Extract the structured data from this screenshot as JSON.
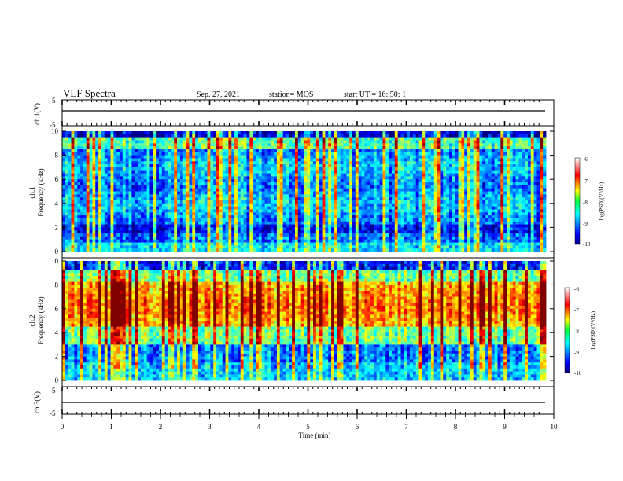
{
  "header": {
    "title": "VLF Spectra",
    "date": "Sep. 27, 2021",
    "station": "station= MOS",
    "start": "start  UT =   16: 50: 1"
  },
  "chart_data": [
    {
      "type": "line",
      "panel": "ch1-waveform",
      "ylabel": "ch.1(V)",
      "ylim": [
        -5,
        5
      ],
      "yticks": [
        "5",
        "-5"
      ],
      "xlim": [
        0,
        10
      ],
      "series": [
        {
          "values": [
            -1.3,
            -1.3
          ]
        }
      ]
    },
    {
      "type": "heatmap",
      "panel": "ch1-spectrogram",
      "ylabel": "ch.1\nFrequency (kHz)",
      "ylim": [
        0,
        10
      ],
      "yticks": [
        "0",
        "2",
        "4",
        "6",
        "8",
        "10"
      ],
      "xlim": [
        0,
        9.85
      ],
      "colorbar": {
        "label": "log(PSD)(V²/Hz)",
        "range": [
          -10,
          -6
        ],
        "ticks": [
          "-6",
          "-7",
          "-8",
          "-9",
          "-10"
        ]
      },
      "description_levels": {
        "low_band_kHz": [
          0,
          2
        ],
        "bright_band_kHz": [
          2,
          9
        ],
        "dominant_log_psd": -8
      }
    },
    {
      "type": "heatmap",
      "panel": "ch2-spectrogram",
      "ylabel": "ch.2\nFrequency (kHz)",
      "ylim": [
        0,
        10
      ],
      "yticks": [
        "0",
        "2",
        "4",
        "6",
        "8",
        "10"
      ],
      "xlim": [
        0,
        9.85
      ],
      "colorbar": {
        "label": "log(PSD)(V²/Hz)",
        "range": [
          -10,
          -6
        ],
        "ticks": [
          "-6",
          "-7",
          "-8",
          "-9",
          "-10"
        ]
      },
      "description_levels": {
        "hot_band_kHz": [
          4.5,
          8
        ],
        "dominant_log_psd": -7
      }
    },
    {
      "type": "line",
      "panel": "ch3-waveform",
      "ylabel": "ch.3(V)",
      "ylim": [
        -5,
        5
      ],
      "yticks": [
        "5",
        "-5"
      ],
      "xlim": [
        0,
        10
      ],
      "series": [
        {
          "values": [
            -1.3,
            -1.3
          ]
        }
      ]
    }
  ],
  "xaxis": {
    "label": "Time  (min)",
    "ticks": [
      "0",
      "1",
      "2",
      "3",
      "4",
      "5",
      "6",
      "7",
      "8",
      "9",
      "10"
    ]
  }
}
